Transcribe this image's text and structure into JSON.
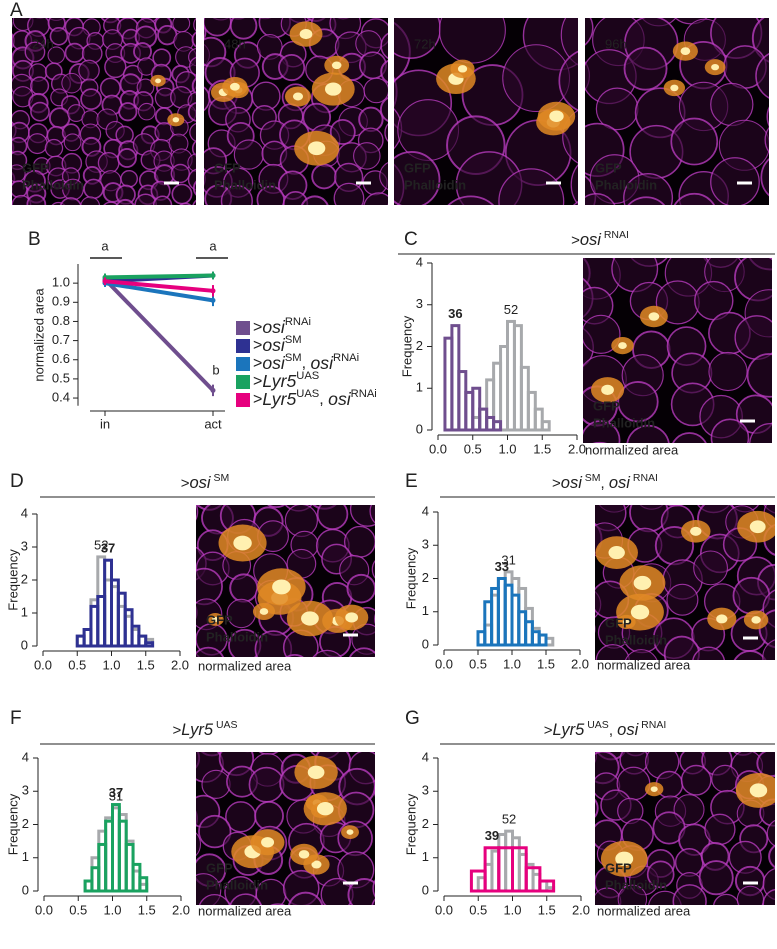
{
  "panel_a": {
    "label": "A",
    "images": [
      {
        "time": "24h",
        "labels": [
          "GFP",
          "Phalloidin"
        ]
      },
      {
        "time": "48h",
        "labels": [
          "GFP",
          "Phalloidin"
        ]
      },
      {
        "time": "72h",
        "labels": [
          "GFP",
          "Phalloidin"
        ]
      },
      {
        "time": "96h",
        "labels": [
          "GFP",
          "Phalloidin"
        ]
      }
    ]
  },
  "chart_data": [
    {
      "type": "line",
      "panel_label": "B",
      "categories": [
        "in",
        "act"
      ],
      "ylabel": "normalized area",
      "ylim": [
        0.36,
        1.1
      ],
      "yticks": [
        0.4,
        0.5,
        0.6,
        0.7,
        0.8,
        0.9,
        {
          "value": 1,
          "label": "1.0"
        }
      ],
      "annotations": [
        "a",
        "a",
        "b"
      ],
      "series": [
        {
          "name": [
            {
              "text": ">",
              "style": "normal"
            },
            {
              "text": "osi",
              "style": "italic"
            },
            {
              "text": "RNAi",
              "style": "sup"
            }
          ],
          "color": "#6f4e8e",
          "values": [
            1.02,
            0.44
          ],
          "errors": [
            0.03,
            0.03
          ]
        },
        {
          "name": [
            {
              "text": ">",
              "style": "normal"
            },
            {
              "text": "osi",
              "style": "italic"
            },
            {
              "text": "SM",
              "style": "sup"
            }
          ],
          "color": "#2e3192",
          "values": [
            1.01,
            1.04
          ],
          "errors": [
            0.02,
            0.02
          ]
        },
        {
          "name": [
            {
              "text": ">",
              "style": "normal"
            },
            {
              "text": "osi",
              "style": "italic"
            },
            {
              "text": "SM",
              "style": "sup"
            },
            {
              "text": ", ",
              "style": "normal"
            },
            {
              "text": "osi",
              "style": "italic"
            },
            {
              "text": "RNAi",
              "style": "sup"
            }
          ],
          "color": "#1b75bc",
          "values": [
            1.0,
            0.91
          ],
          "errors": [
            0.02,
            0.03
          ]
        },
        {
          "name": [
            {
              "text": ">",
              "style": "normal"
            },
            {
              "text": "Lyr5",
              "style": "italic"
            },
            {
              "text": "UAS",
              "style": "sup"
            }
          ],
          "color": "#1aa260",
          "values": [
            1.03,
            1.04
          ],
          "errors": [
            0.02,
            0.02
          ]
        },
        {
          "name": [
            {
              "text": ">",
              "style": "normal"
            },
            {
              "text": "Lyr5",
              "style": "italic"
            },
            {
              "text": "UAS",
              "style": "sup"
            },
            {
              "text": ", ",
              "style": "normal"
            },
            {
              "text": "osi",
              "style": "italic"
            },
            {
              "text": "RNAi",
              "style": "sup"
            }
          ],
          "color": "#e6007e",
          "values": [
            1.01,
            0.96
          ],
          "errors": [
            0.02,
            0.03
          ]
        }
      ]
    },
    {
      "type": "histogram",
      "panel_label": "C",
      "title": [
        {
          "text": ">",
          "style": "normal"
        },
        {
          "text": "osi",
          "style": "italic"
        },
        {
          "text": " RNAI",
          "style": "sup"
        }
      ],
      "xlabel": "normalized area",
      "ylabel": "Frequency",
      "xlim": [
        0,
        2
      ],
      "ylim": [
        0,
        4
      ],
      "xticks": [
        {
          "value": 0,
          "label": "0.0"
        },
        0.5,
        {
          "value": 1,
          "label": "1.0"
        },
        1.5,
        {
          "value": 2,
          "label": "2.0"
        }
      ],
      "yticks": [
        0,
        1,
        2,
        3,
        4
      ],
      "image_labels": [
        "GFP",
        "Phalloidin"
      ],
      "series": [
        {
          "label": "52",
          "label_color": "#444444",
          "color": "#a7a9ac",
          "bins": [
            0.5,
            0.6,
            0.7,
            0.8,
            0.9,
            1.0,
            1.1,
            1.2,
            1.3,
            1.4,
            1.5,
            1.6
          ],
          "values": [
            0.3,
            0.5,
            1.2,
            1.6,
            2.0,
            2.6,
            2.5,
            1.5,
            0.9,
            0.5,
            0.2
          ]
        },
        {
          "label": "36",
          "label_color": "#6f4e8e",
          "color": "#6f4e8e",
          "bins": [
            0.1,
            0.2,
            0.3,
            0.4,
            0.5,
            0.6,
            0.7,
            0.8,
            0.9
          ],
          "values": [
            2.2,
            2.5,
            1.4,
            0.9,
            1.0,
            0.5,
            0.3,
            0.2
          ]
        }
      ]
    },
    {
      "type": "histogram",
      "panel_label": "D",
      "title": [
        {
          "text": ">",
          "style": "normal"
        },
        {
          "text": "osi",
          "style": "italic"
        },
        {
          "text": " SM",
          "style": "sup"
        }
      ],
      "xlabel": "normalized area",
      "ylabel": "Frequency",
      "xlim": [
        0,
        2
      ],
      "ylim": [
        0,
        4
      ],
      "xticks": [
        {
          "value": 0,
          "label": "0.0"
        },
        0.5,
        {
          "value": 1,
          "label": "1.0"
        },
        1.5,
        {
          "value": 2,
          "label": "2.0"
        }
      ],
      "yticks": [
        0,
        1,
        2,
        3,
        4
      ],
      "image_labels": [
        "GFP",
        "Phalloidin"
      ],
      "series": [
        {
          "label": "52",
          "label_color": "#444444",
          "color": "#a7a9ac",
          "bins": [
            0.5,
            0.6,
            0.7,
            0.8,
            0.9,
            1.0,
            1.1,
            1.2,
            1.3,
            1.4,
            1.5,
            1.6
          ],
          "values": [
            0.3,
            0.5,
            1.4,
            2.7,
            2.0,
            1.8,
            1.2,
            0.9,
            0.5,
            0.3,
            0.2
          ]
        },
        {
          "label": "37",
          "label_color": "#2e3192",
          "color": "#2e3192",
          "bins": [
            0.5,
            0.6,
            0.7,
            0.8,
            0.9,
            1.0,
            1.1,
            1.2,
            1.3,
            1.4,
            1.5,
            1.6
          ],
          "values": [
            0.3,
            0.5,
            1.2,
            1.5,
            2.6,
            2.0,
            1.6,
            1.1,
            0.6,
            0.3,
            0.1
          ]
        }
      ]
    },
    {
      "type": "histogram",
      "panel_label": "E",
      "title": [
        {
          "text": ">",
          "style": "normal"
        },
        {
          "text": "osi",
          "style": "italic"
        },
        {
          "text": " SM",
          "style": "sup"
        },
        {
          "text": ", ",
          "style": "normal"
        },
        {
          "text": "osi",
          "style": "italic"
        },
        {
          "text": " RNAI",
          "style": "sup"
        }
      ],
      "xlabel": "normalized area",
      "ylabel": "Frequency",
      "xlim": [
        0,
        2
      ],
      "ylim": [
        0,
        4
      ],
      "xticks": [
        {
          "value": 0,
          "label": "0.0"
        },
        0.5,
        {
          "value": 1,
          "label": "1.0"
        },
        1.5,
        {
          "value": 2,
          "label": "2.0"
        }
      ],
      "yticks": [
        0,
        1,
        2,
        3,
        4
      ],
      "image_labels": [
        "GFP",
        "Phalloidin"
      ],
      "series": [
        {
          "label": "31",
          "label_color": "#444444",
          "color": "#a7a9ac",
          "bins": [
            0.6,
            0.7,
            0.8,
            0.9,
            1.0,
            1.1,
            1.2,
            1.3,
            1.4,
            1.5,
            1.6
          ],
          "values": [
            0.6,
            1.5,
            2.0,
            2.2,
            2.0,
            1.7,
            1.1,
            0.5,
            0.3,
            0.2
          ]
        },
        {
          "label": "33",
          "label_color": "#1b75bc",
          "color": "#1b75bc",
          "bins": [
            0.5,
            0.6,
            0.7,
            0.8,
            0.9,
            1.0,
            1.1,
            1.2,
            1.3,
            1.4,
            1.5
          ],
          "values": [
            0.4,
            1.3,
            1.7,
            2.0,
            1.8,
            1.5,
            1.0,
            0.7,
            0.4,
            0.3
          ]
        }
      ]
    },
    {
      "type": "histogram",
      "panel_label": "F",
      "title": [
        {
          "text": ">",
          "style": "normal"
        },
        {
          "text": "Lyr5",
          "style": "italic"
        },
        {
          "text": " UAS",
          "style": "sup"
        }
      ],
      "xlabel": "normalized area",
      "ylabel": "Frequency",
      "xlim": [
        0,
        2
      ],
      "ylim": [
        0,
        4
      ],
      "xticks": [
        {
          "value": 0,
          "label": "0.0"
        },
        0.5,
        {
          "value": 1,
          "label": "1.0"
        },
        1.5,
        {
          "value": 2,
          "label": "2.0"
        }
      ],
      "yticks": [
        0,
        1,
        2,
        3,
        4
      ],
      "image_labels": [
        "GFP",
        "Phalloidin"
      ],
      "series": [
        {
          "label": "31",
          "label_color": "#444444",
          "color": "#a7a9ac",
          "bins": [
            0.6,
            0.7,
            0.8,
            0.9,
            1.0,
            1.1,
            1.2,
            1.3,
            1.4,
            1.5
          ],
          "values": [
            0.3,
            1.0,
            1.8,
            2.2,
            2.5,
            2.3,
            1.5,
            0.6,
            0.2
          ]
        },
        {
          "label": "37",
          "label_color": "#1aa260",
          "color": "#1aa260",
          "bins": [
            0.6,
            0.7,
            0.8,
            0.9,
            1.0,
            1.1,
            1.2,
            1.3,
            1.4,
            1.5
          ],
          "values": [
            0.3,
            0.7,
            1.4,
            2.1,
            2.6,
            2.1,
            1.4,
            0.8,
            0.4
          ]
        }
      ]
    },
    {
      "type": "histogram",
      "panel_label": "G",
      "title": [
        {
          "text": ">",
          "style": "normal"
        },
        {
          "text": "Lyr5",
          "style": "italic"
        },
        {
          "text": " UAS",
          "style": "sup"
        },
        {
          "text": ", ",
          "style": "normal"
        },
        {
          "text": "osi",
          "style": "italic"
        },
        {
          "text": " RNAI",
          "style": "sup"
        }
      ],
      "xlabel": "normalized area",
      "ylabel": "Frequency",
      "xlim": [
        0,
        2
      ],
      "ylim": [
        0,
        4
      ],
      "xticks": [
        {
          "value": 0,
          "label": "0.0"
        },
        0.5,
        {
          "value": 1,
          "label": "1.0"
        },
        1.5,
        {
          "value": 2,
          "label": "2.0"
        }
      ],
      "yticks": [
        0,
        1,
        2,
        3,
        4
      ],
      "image_labels": [
        "GFP",
        "Phalloidin"
      ],
      "series": [
        {
          "label": "52",
          "label_color": "#444444",
          "color": "#a7a9ac",
          "bins": [
            0.5,
            0.6,
            0.7,
            0.8,
            0.9,
            1.0,
            1.1,
            1.2,
            1.3,
            1.4,
            1.5,
            1.6
          ],
          "values": [
            0.4,
            0.8,
            1.2,
            1.7,
            1.8,
            1.6,
            1.1,
            0.8,
            0.5,
            0.3,
            0.1
          ]
        },
        {
          "label": "39",
          "label_color": "#e6007e",
          "color": "#e6007e",
          "bins": [
            0.4,
            0.6,
            0.8,
            1.0,
            1.2,
            1.4,
            1.6
          ],
          "values": [
            0.6,
            1.3,
            1.3,
            1.3,
            0.7,
            0.3
          ]
        }
      ]
    }
  ]
}
